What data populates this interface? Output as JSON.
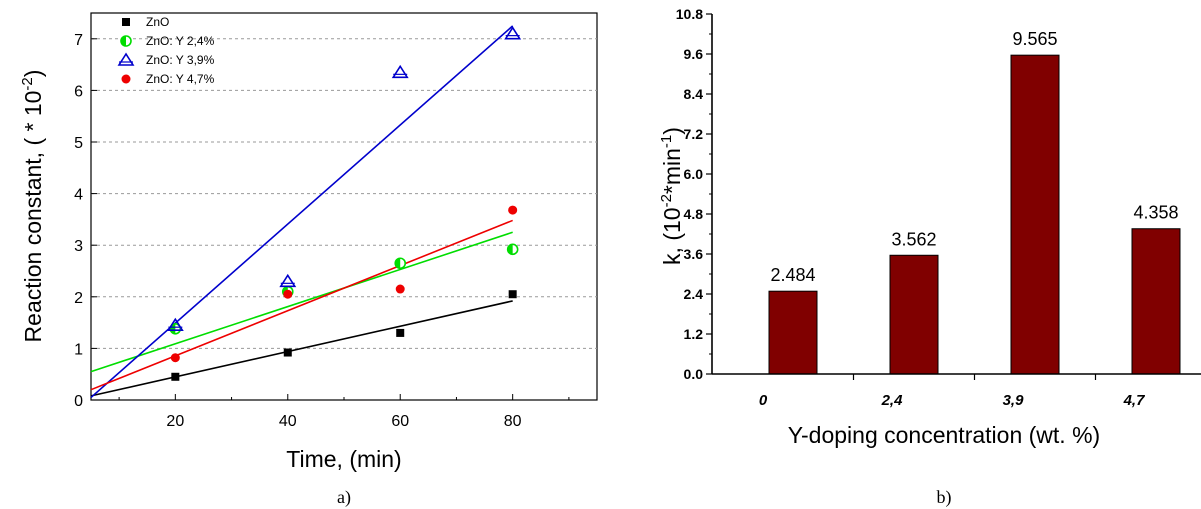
{
  "chart_data": [
    {
      "type": "scatter",
      "caption": "a)",
      "xlabel": "Time, (min)",
      "ylabel_prefix": "Reaction constant, ( * 10",
      "ylabel_exp": "-2",
      "ylabel_suffix": ")",
      "xlim": [
        5,
        95
      ],
      "ylim": [
        0,
        7.5
      ],
      "xticks": [
        20,
        40,
        60,
        80
      ],
      "yticks": [
        0,
        1,
        2,
        3,
        4,
        5,
        6,
        7
      ],
      "grid": "horizontal dashed",
      "legend_position": "top-left",
      "series": [
        {
          "name": "ZnO",
          "marker": "square",
          "color": "#000000",
          "x": [
            20,
            40,
            60,
            80
          ],
          "y": [
            0.45,
            0.92,
            1.3,
            2.05
          ],
          "fit": {
            "x": [
              5,
              80
            ],
            "y": [
              0.08,
              1.92
            ]
          }
        },
        {
          "name": "ZnO: Y 2,4%",
          "marker": "half-circle",
          "color": "#00dd00",
          "x": [
            20,
            40,
            60,
            80
          ],
          "y": [
            1.38,
            2.1,
            2.65,
            2.92
          ],
          "fit": {
            "x": [
              5,
              80
            ],
            "y": [
              0.55,
              3.25
            ]
          }
        },
        {
          "name": "ZnO: Y 3,9%",
          "marker": "triangle",
          "color": "#0000cc",
          "x": [
            20,
            40,
            60,
            80
          ],
          "y": [
            1.45,
            2.3,
            6.35,
            7.1
          ],
          "fit": {
            "x": [
              5,
              80
            ],
            "y": [
              0.05,
              7.25
            ]
          }
        },
        {
          "name": "ZnO: Y 4,7%",
          "marker": "circle",
          "color": "#ee0000",
          "x": [
            20,
            40,
            60,
            80
          ],
          "y": [
            0.82,
            2.05,
            2.15,
            3.68
          ],
          "fit": {
            "x": [
              5,
              80
            ],
            "y": [
              0.2,
              3.48
            ]
          }
        }
      ]
    },
    {
      "type": "bar",
      "caption": "b)",
      "xlabel": "Y-doping concentration (wt. %)",
      "ylabel_prefix": "k, (10",
      "ylabel_exp1": "-2",
      "ylabel_mid": "*min",
      "ylabel_exp2": "-1",
      "ylabel_suffix": ")",
      "categories": [
        "0",
        "2,4",
        "3,9",
        "4,7"
      ],
      "values": [
        2.484,
        3.562,
        9.565,
        4.358
      ],
      "data_labels": [
        "2.484",
        "3.562",
        "9.565",
        "4.358"
      ],
      "yticks": [
        "0.0",
        "1.2",
        "2.4",
        "3.6",
        "4.8",
        "6.0",
        "7.2",
        "8.4",
        "9.6",
        "10.8"
      ],
      "ylim": [
        0,
        10.8
      ],
      "bar_color": "#800000"
    }
  ]
}
